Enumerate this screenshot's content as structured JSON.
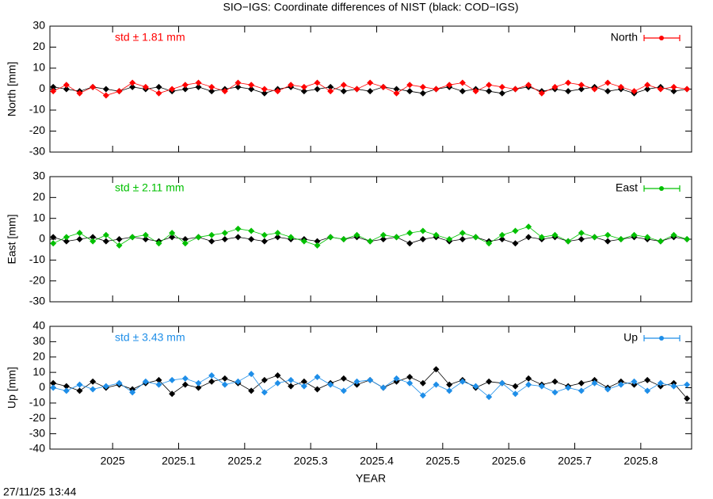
{
  "title": "SIO−IGS: Coordinate differences of NIST (black: COD−IGS)",
  "timestamp": "27/11/25 13:44",
  "chart_data": [
    {
      "type": "line",
      "ylabel": "North [mm]",
      "annotation": "std ± 1.81 mm",
      "legend": "top-right",
      "x": [
        2024.91,
        2024.93,
        2024.95,
        2024.97,
        2024.99,
        2025.01,
        2025.03,
        2025.05,
        2025.07,
        2025.09,
        2025.11,
        2025.13,
        2025.15,
        2025.17,
        2025.19,
        2025.21,
        2025.23,
        2025.25,
        2025.27,
        2025.29,
        2025.31,
        2025.33,
        2025.35,
        2025.37,
        2025.39,
        2025.41,
        2025.43,
        2025.45,
        2025.47,
        2025.49,
        2025.51,
        2025.53,
        2025.55,
        2025.57,
        2025.59,
        2025.61,
        2025.63,
        2025.65,
        2025.67,
        2025.69,
        2025.71,
        2025.73,
        2025.75,
        2025.77,
        2025.79,
        2025.81,
        2025.83,
        2025.85,
        2025.87
      ],
      "xlim": [
        2024.905,
        2025.877
      ],
      "ylim": [
        -30,
        30
      ],
      "yticks": [
        -30,
        -20,
        -10,
        0,
        10,
        20,
        30
      ],
      "series": [
        {
          "color": "#000000",
          "values": [
            1,
            0,
            -1,
            1,
            0,
            -1,
            1,
            0,
            1,
            -1,
            0,
            1,
            -1,
            0,
            1,
            0,
            -2,
            0,
            1,
            -1,
            0,
            1,
            -1,
            0,
            -1,
            1,
            0,
            -1,
            -2,
            0,
            1,
            -1,
            0,
            -1,
            -2,
            0,
            1,
            -1,
            0,
            -1,
            0,
            1,
            -1,
            0,
            -2,
            0,
            1,
            -1,
            0
          ]
        },
        {
          "name": "North",
          "color": "#ff0000",
          "values": [
            -1,
            2,
            -2,
            1,
            -3,
            -1,
            3,
            1,
            -2,
            0,
            2,
            3,
            1,
            -1,
            3,
            2,
            0,
            -1,
            2,
            1,
            3,
            -1,
            2,
            0,
            3,
            1,
            -2,
            2,
            1,
            0,
            2,
            3,
            -1,
            2,
            1,
            0,
            2,
            -2,
            1,
            3,
            2,
            0,
            3,
            1,
            -1,
            2,
            0,
            1,
            0
          ]
        }
      ]
    },
    {
      "type": "line",
      "ylabel": "East [mm]",
      "annotation": "std ± 2.11 mm",
      "legend": "top-right",
      "x": [
        2024.91,
        2024.93,
        2024.95,
        2024.97,
        2024.99,
        2025.01,
        2025.03,
        2025.05,
        2025.07,
        2025.09,
        2025.11,
        2025.13,
        2025.15,
        2025.17,
        2025.19,
        2025.21,
        2025.23,
        2025.25,
        2025.27,
        2025.29,
        2025.31,
        2025.33,
        2025.35,
        2025.37,
        2025.39,
        2025.41,
        2025.43,
        2025.45,
        2025.47,
        2025.49,
        2025.51,
        2025.53,
        2025.55,
        2025.57,
        2025.59,
        2025.61,
        2025.63,
        2025.65,
        2025.67,
        2025.69,
        2025.71,
        2025.73,
        2025.75,
        2025.77,
        2025.79,
        2025.81,
        2025.83,
        2025.85,
        2025.87
      ],
      "xlim": [
        2024.905,
        2025.877
      ],
      "ylim": [
        -30,
        30
      ],
      "yticks": [
        -30,
        -20,
        -10,
        0,
        10,
        20,
        30
      ],
      "series": [
        {
          "color": "#000000",
          "values": [
            1,
            -1,
            0,
            1,
            -1,
            0,
            1,
            0,
            -1,
            1,
            0,
            1,
            -1,
            0,
            1,
            0,
            -1,
            1,
            0,
            0,
            -1,
            1,
            0,
            1,
            -1,
            0,
            1,
            -2,
            0,
            1,
            -1,
            0,
            1,
            -1,
            0,
            -2,
            1,
            0,
            1,
            -1,
            0,
            1,
            -1,
            0,
            1,
            0,
            -1,
            1,
            0
          ]
        },
        {
          "name": "East",
          "color": "#00c000",
          "values": [
            -2,
            1,
            3,
            -1,
            2,
            -3,
            1,
            2,
            -2,
            3,
            -2,
            1,
            2,
            3,
            5,
            4,
            2,
            3,
            1,
            -1,
            -3,
            1,
            0,
            2,
            -1,
            2,
            1,
            3,
            4,
            2,
            0,
            3,
            1,
            -2,
            2,
            4,
            6,
            1,
            2,
            -1,
            3,
            1,
            2,
            0,
            2,
            1,
            -1,
            2,
            0
          ]
        }
      ]
    },
    {
      "type": "line",
      "ylabel": "Up [mm]",
      "annotation": "std ± 3.43 mm",
      "legend": "top-right",
      "xlabel": "YEAR",
      "x": [
        2024.91,
        2024.93,
        2024.95,
        2024.97,
        2024.99,
        2025.01,
        2025.03,
        2025.05,
        2025.07,
        2025.09,
        2025.11,
        2025.13,
        2025.15,
        2025.17,
        2025.19,
        2025.21,
        2025.23,
        2025.25,
        2025.27,
        2025.29,
        2025.31,
        2025.33,
        2025.35,
        2025.37,
        2025.39,
        2025.41,
        2025.43,
        2025.45,
        2025.47,
        2025.49,
        2025.51,
        2025.53,
        2025.55,
        2025.57,
        2025.59,
        2025.61,
        2025.63,
        2025.65,
        2025.67,
        2025.69,
        2025.71,
        2025.73,
        2025.75,
        2025.77,
        2025.79,
        2025.81,
        2025.83,
        2025.85,
        2025.87
      ],
      "xlim": [
        2024.905,
        2025.877
      ],
      "xticks": [
        2025,
        2025.1,
        2025.2,
        2025.3,
        2025.4,
        2025.5,
        2025.6,
        2025.7,
        2025.8
      ],
      "ylim": [
        -40,
        40
      ],
      "yticks": [
        -40,
        -30,
        -20,
        -10,
        0,
        10,
        20,
        30,
        40
      ],
      "series": [
        {
          "color": "#000000",
          "values": [
            3,
            1,
            -2,
            4,
            0,
            2,
            -1,
            3,
            5,
            -4,
            2,
            0,
            4,
            6,
            3,
            -2,
            5,
            8,
            1,
            4,
            -1,
            3,
            6,
            2,
            5,
            0,
            4,
            7,
            3,
            12,
            2,
            5,
            0,
            4,
            3,
            1,
            6,
            2,
            4,
            1,
            3,
            5,
            0,
            4,
            2,
            5,
            1,
            3,
            -7
          ]
        },
        {
          "name": "Up",
          "color": "#1e8ee8",
          "values": [
            0,
            -2,
            2,
            -1,
            1,
            3,
            -3,
            4,
            2,
            5,
            6,
            3,
            8,
            2,
            4,
            9,
            -3,
            3,
            5,
            1,
            7,
            2,
            -2,
            4,
            5,
            0,
            6,
            3,
            -5,
            2,
            -2,
            4,
            1,
            -6,
            3,
            -4,
            2,
            1,
            -3,
            0,
            -2,
            3,
            -1,
            2,
            4,
            -2,
            3,
            1,
            2
          ]
        }
      ]
    }
  ]
}
